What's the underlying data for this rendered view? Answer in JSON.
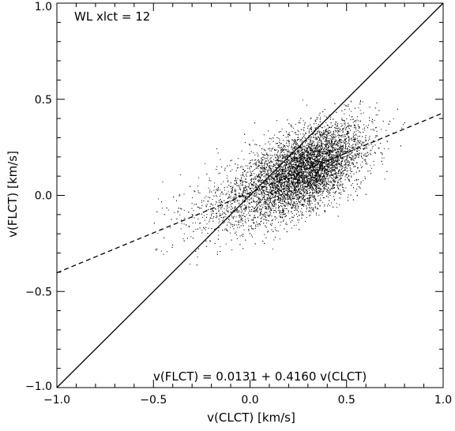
{
  "chart_data": {
    "type": "scatter",
    "title": "",
    "annotation_top": "WL  xlct =  12",
    "fit_annotation": "v(FLCT) =  0.0131 + 0.4160 v(CLCT)",
    "xlabel": "v(CLCT) [km/s]",
    "ylabel": "v(FLCT) [km/s]",
    "xlim": [
      -1.0,
      1.0
    ],
    "ylim": [
      -1.0,
      1.0
    ],
    "xticks": [
      -1.0,
      -0.5,
      0.0,
      0.5,
      1.0
    ],
    "yticks": [
      -1.0,
      -0.5,
      0.0,
      0.5,
      1.0
    ],
    "xtick_labels": [
      "−1.0",
      "−0.5",
      "0.0",
      "0.5",
      "1.0"
    ],
    "ytick_labels": [
      "−1.0",
      "−0.5",
      "0.0",
      "0.5",
      "1.0"
    ],
    "grid": false,
    "series": [
      {
        "style": "solid",
        "kind": "line",
        "x": [
          -1.0,
          1.0
        ],
        "y": [
          -1.0,
          1.0
        ]
      },
      {
        "style": "dashed",
        "kind": "line",
        "intercept": 0.0131,
        "slope": 0.416,
        "x": [
          -1.0,
          1.0
        ],
        "y": [
          -0.4029,
          0.4291
        ]
      },
      {
        "kind": "scatter",
        "cluster_points": [
          [
            -0.4,
            -0.25
          ],
          [
            -0.3,
            -0.15
          ],
          [
            -0.2,
            -0.05
          ],
          [
            -0.1,
            0.0
          ],
          [
            0.0,
            0.02
          ],
          [
            0.1,
            0.06
          ],
          [
            0.2,
            0.1
          ],
          [
            0.3,
            0.15
          ],
          [
            0.4,
            0.2
          ],
          [
            0.5,
            0.25
          ],
          [
            0.6,
            0.28
          ],
          [
            0.7,
            0.3
          ]
        ],
        "color": "#000000"
      }
    ]
  }
}
